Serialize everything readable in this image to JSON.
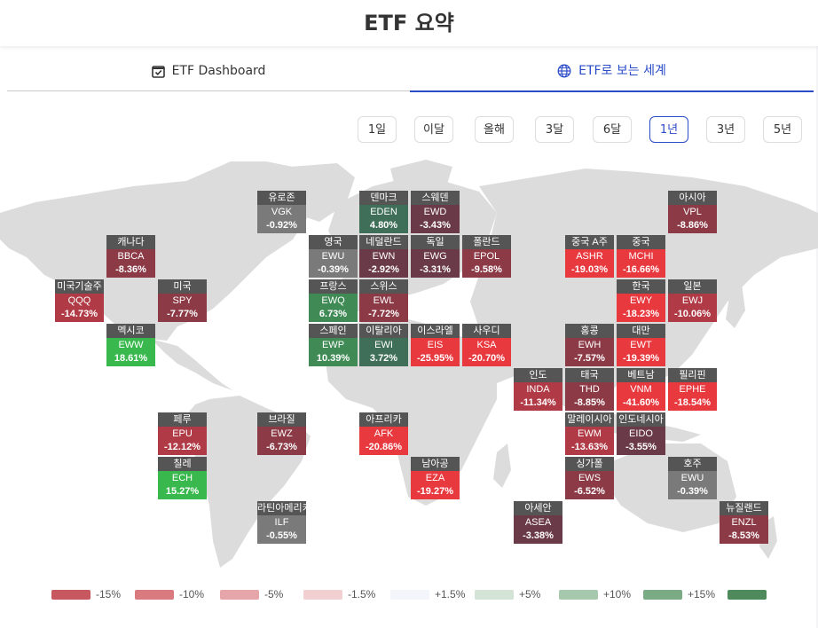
{
  "page": {
    "title": "ETF 요약"
  },
  "tabs": [
    {
      "label": "ETF Dashboard",
      "icon": "checkbox-icon",
      "active": false
    },
    {
      "label": "ETF로 보는 세계",
      "icon": "globe-icon",
      "active": true
    }
  ],
  "periods": [
    {
      "label": "1일",
      "active": false
    },
    {
      "label": "이달",
      "active": false
    },
    {
      "label": "올해",
      "active": false
    },
    {
      "label": "3달",
      "active": false
    },
    {
      "label": "6달",
      "active": false
    },
    {
      "label": "1년",
      "active": true
    },
    {
      "label": "3년",
      "active": false
    },
    {
      "label": "5년",
      "active": false
    }
  ],
  "tiles": [
    {
      "label": "유로존",
      "ticker": "VGK",
      "change": "-0.92%",
      "value": -0.92
    },
    {
      "label": "덴마크",
      "ticker": "EDEN",
      "change": "4.80%",
      "value": 4.8
    },
    {
      "label": "스웨덴",
      "ticker": "EWD",
      "change": "-3.43%",
      "value": -3.43
    },
    {
      "label": "아시아",
      "ticker": "VPL",
      "change": "-8.86%",
      "value": -8.86
    },
    {
      "label": "캐나다",
      "ticker": "BBCA",
      "change": "-8.36%",
      "value": -8.36
    },
    {
      "label": "영국",
      "ticker": "EWU",
      "change": "-0.39%",
      "value": -0.39
    },
    {
      "label": "네덜란드",
      "ticker": "EWN",
      "change": "-2.92%",
      "value": -2.92
    },
    {
      "label": "독일",
      "ticker": "EWG",
      "change": "-3.31%",
      "value": -3.31
    },
    {
      "label": "폴란드",
      "ticker": "EPOL",
      "change": "-9.58%",
      "value": -9.58
    },
    {
      "label": "중국 A주",
      "ticker": "ASHR",
      "change": "-19.03%",
      "value": -19.03
    },
    {
      "label": "중국",
      "ticker": "MCHI",
      "change": "-16.66%",
      "value": -16.66
    },
    {
      "label": "미국기술주",
      "ticker": "QQQ",
      "change": "-14.73%",
      "value": -14.73
    },
    {
      "label": "미국",
      "ticker": "SPY",
      "change": "-7.77%",
      "value": -7.77
    },
    {
      "label": "프랑스",
      "ticker": "EWQ",
      "change": "6.73%",
      "value": 6.73
    },
    {
      "label": "스위스",
      "ticker": "EWL",
      "change": "-7.72%",
      "value": -7.72
    },
    {
      "label": "한국",
      "ticker": "EWY",
      "change": "-18.23%",
      "value": -18.23
    },
    {
      "label": "일본",
      "ticker": "EWJ",
      "change": "-10.06%",
      "value": -10.06
    },
    {
      "label": "멕시코",
      "ticker": "EWW",
      "change": "18.61%",
      "value": 18.61
    },
    {
      "label": "스페인",
      "ticker": "EWP",
      "change": "10.39%",
      "value": 10.39
    },
    {
      "label": "이탈리아",
      "ticker": "EWI",
      "change": "3.72%",
      "value": 3.72
    },
    {
      "label": "이스라엘",
      "ticker": "EIS",
      "change": "-25.95%",
      "value": -25.95
    },
    {
      "label": "사우디",
      "ticker": "KSA",
      "change": "-20.70%",
      "value": -20.7
    },
    {
      "label": "홍콩",
      "ticker": "EWH",
      "change": "-7.57%",
      "value": -7.57
    },
    {
      "label": "대만",
      "ticker": "EWT",
      "change": "-19.39%",
      "value": -19.39
    },
    {
      "label": "인도",
      "ticker": "INDA",
      "change": "-11.34%",
      "value": -11.34
    },
    {
      "label": "태국",
      "ticker": "THD",
      "change": "-8.85%",
      "value": -8.85
    },
    {
      "label": "베트남",
      "ticker": "VNM",
      "change": "-41.60%",
      "value": -41.6
    },
    {
      "label": "필리핀",
      "ticker": "EPHE",
      "change": "-18.54%",
      "value": -18.54
    },
    {
      "label": "페루",
      "ticker": "EPU",
      "change": "-12.12%",
      "value": -12.12
    },
    {
      "label": "브라질",
      "ticker": "EWZ",
      "change": "-6.73%",
      "value": -6.73
    },
    {
      "label": "아프리카",
      "ticker": "AFK",
      "change": "-20.86%",
      "value": -20.86
    },
    {
      "label": "말레이시아",
      "ticker": "EWM",
      "change": "-13.63%",
      "value": -13.63
    },
    {
      "label": "인도네시아",
      "ticker": "EIDO",
      "change": "-3.55%",
      "value": -3.55
    },
    {
      "label": "칠레",
      "ticker": "ECH",
      "change": "15.27%",
      "value": 15.27
    },
    {
      "label": "남아공",
      "ticker": "EZA",
      "change": "-19.27%",
      "value": -19.27
    },
    {
      "label": "싱가폴",
      "ticker": "EWS",
      "change": "-6.52%",
      "value": -6.52
    },
    {
      "label": "호주",
      "ticker": "EWU",
      "change": "-0.39%",
      "value": -0.39
    },
    {
      "label": "라틴아메리카",
      "ticker": "ILF",
      "change": "-0.55%",
      "value": -0.55
    },
    {
      "label": "아세안",
      "ticker": "ASEA",
      "change": "-3.38%",
      "value": -3.38
    },
    {
      "label": "뉴질랜드",
      "ticker": "ENZL",
      "change": "-8.53%",
      "value": -8.53
    }
  ],
  "legend": [
    {
      "label": "-15%",
      "color": "#c8585f"
    },
    {
      "label": "-10%",
      "color": "#d97a7f"
    },
    {
      "label": "-5%",
      "color": "#e6a5a8"
    },
    {
      "label": "-1.5%",
      "color": "#f2cfd0"
    },
    {
      "label": "+1.5%",
      "color": "#f3f5fb"
    },
    {
      "label": "+5%",
      "color": "#d3e3d6"
    },
    {
      "label": "+10%",
      "color": "#a6c9ad"
    },
    {
      "label": "+15%",
      "color": "#7bab85"
    },
    {
      "label": "",
      "color": "#4f8a5c"
    }
  ]
}
